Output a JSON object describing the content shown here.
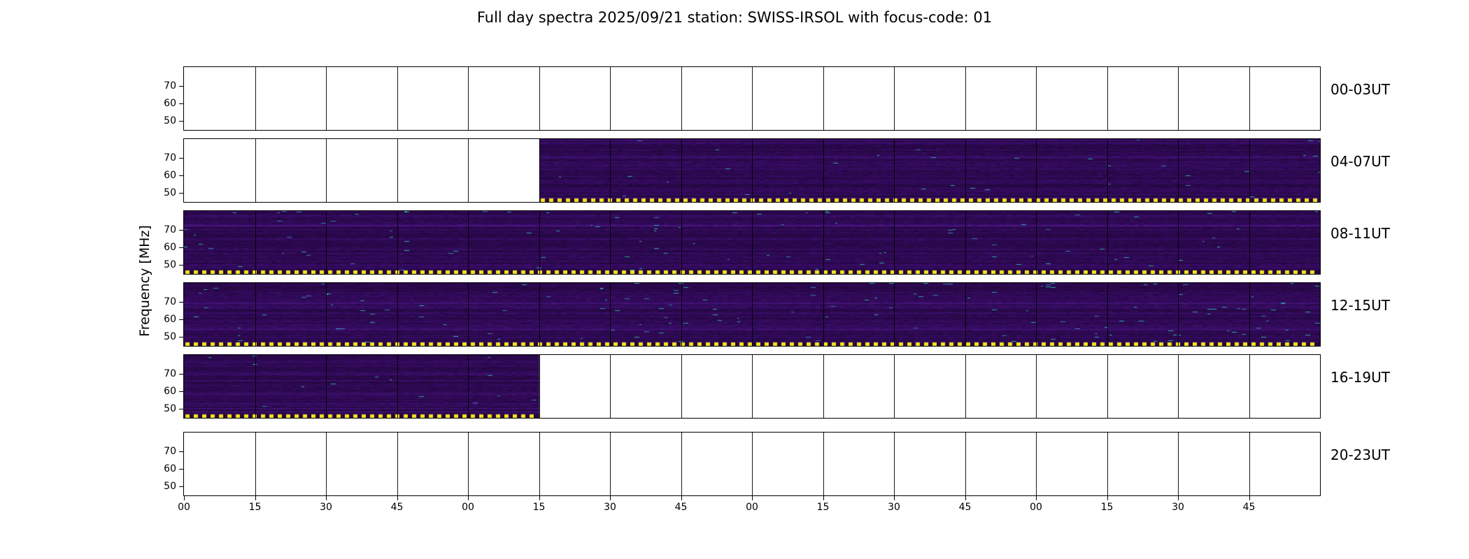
{
  "figure": {
    "title": "Full day spectra 2025/09/21 station: SWISS-IRSOL with focus-code: 01",
    "ylabel": "Frequency [MHz]"
  },
  "chart_data": {
    "type": "heatmap",
    "title": "Full day spectra 2025/09/21 station: SWISS-IRSOL with focus-code: 01",
    "date": "2025/09/21",
    "station": "SWISS-IRSOL",
    "focus_code": "01",
    "ylabel": "Frequency [MHz]",
    "y_ticks": [
      "70",
      "60",
      "50"
    ],
    "x_ticks": [
      "00",
      "15",
      "30",
      "45",
      "00",
      "15",
      "30",
      "45",
      "00",
      "15",
      "30",
      "45",
      "00",
      "15",
      "30",
      "45"
    ],
    "hours_per_panel": 4,
    "panels": [
      {
        "label": "00-03UT",
        "segments": []
      },
      {
        "label": "04-07UT",
        "segments": [
          {
            "start": 0.3125,
            "end": 1.0
          }
        ]
      },
      {
        "label": "08-11UT",
        "segments": [
          {
            "start": 0.0,
            "end": 1.0
          }
        ]
      },
      {
        "label": "12-15UT",
        "segments": [
          {
            "start": 0.0,
            "end": 1.0
          }
        ]
      },
      {
        "label": "16-19UT",
        "segments": [
          {
            "start": 0.0,
            "end": 0.3125
          }
        ]
      },
      {
        "label": "20-23UT",
        "segments": []
      }
    ],
    "legend_position": "none",
    "grid": "quarter-hour vertical dividers",
    "colors": {
      "spectrogram_base": "#330a5f",
      "spectrogram_light": "#48167e",
      "spectrogram_dark": "#22073a",
      "streak_teal": "#2aa8a0",
      "streak_blue": "#3a7bb5",
      "bottom_dash_yellow": "#f5e126",
      "axis": "#000000",
      "background": "#ffffff"
    }
  }
}
